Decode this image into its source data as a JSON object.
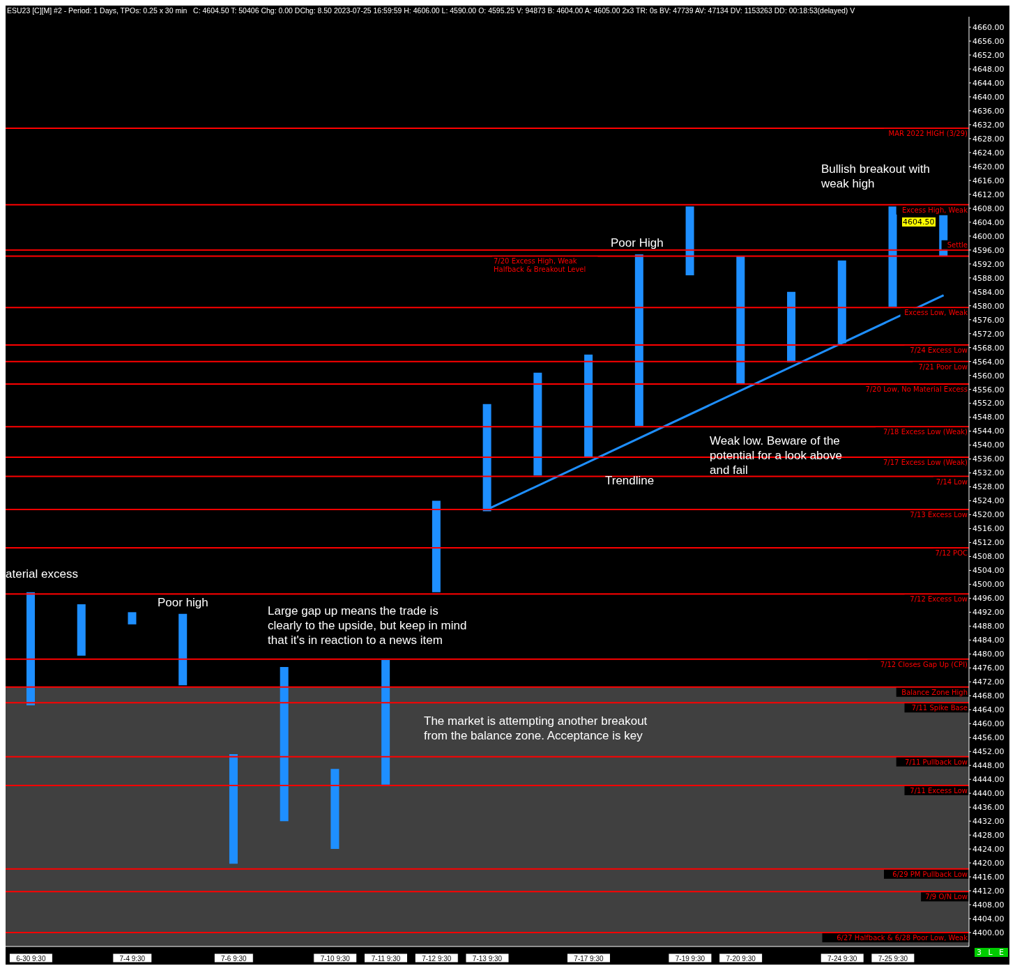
{
  "chart_data": {
    "type": "bar",
    "title": "ESU23 [C][M] #2 - Period: 1 Days, TPOs: 0.25 x 30 min",
    "subtitle": "C: 4604.50 T: 50406 Chg: 0.00 DChg: 8.50 2023-07-25 16:59:59 H: 4606.00 L: 4590.00 O: 4595.25 V: 94873 B: 4604.00 A: 4605.00 2x3 TR: 0s BV: 47739 AV: 47134 DV: 1153263 DD: 00:18:53(delayed) V",
    "categories": [
      "6-30 9:30",
      null,
      "7-4 9:30",
      null,
      "7-6 9:30",
      null,
      "7-10 9:30",
      "7-11 9:30",
      "7-12 9:30",
      "7-13 9:30",
      null,
      "7-17 9:30",
      null,
      "7-19 9:30",
      "7-20 9:30",
      null,
      "7-24 9:30",
      "7-25 9:30",
      null
    ],
    "series": [
      {
        "color": "#1e8fff",
        "base": [
          4465.25,
          4479.5,
          4488.5,
          4471,
          4419.75,
          4432,
          4424,
          4442.5,
          4497.75,
          4521,
          4531.25,
          4536.5,
          4545.5,
          4588.75,
          4557.5,
          4563.75,
          4569.25,
          4579.75,
          4594.25
        ],
        "values": [
          32.5,
          14.75,
          3.5,
          20.5,
          31.5,
          44.25,
          23,
          35.75,
          26.25,
          30.75,
          29.5,
          29.5,
          49.25,
          19.75,
          36.75,
          20.25,
          23.75,
          28.75,
          11.75
        ]
      },
      {
        "type": "line",
        "color": "#1e8fff",
        "values": [
          null,
          null,
          null,
          null,
          null,
          null,
          null,
          null,
          null,
          4521.5,
          null,
          null,
          null,
          null,
          null,
          null,
          null,
          null,
          4583
        ]
      }
    ],
    "ylim": [
      4396,
      4663
    ],
    "yticks": [
      {
        "value": 4400,
        "label": "4400.00"
      },
      {
        "value": 4404,
        "label": "4404.00"
      },
      {
        "value": 4408,
        "label": "4408.00"
      },
      {
        "value": 4412,
        "label": "4412.00"
      },
      {
        "value": 4416,
        "label": "4416.00"
      },
      {
        "value": 4420,
        "label": "4420.00"
      },
      {
        "value": 4424,
        "label": "4424.00"
      },
      {
        "value": 4428,
        "label": "4428.00"
      },
      {
        "value": 4432,
        "label": "4432.00"
      },
      {
        "value": 4436,
        "label": "4436.00"
      },
      {
        "value": 4440,
        "label": "4440.00"
      },
      {
        "value": 4444,
        "label": "4444.00"
      },
      {
        "value": 4448,
        "label": "4448.00"
      },
      {
        "value": 4452,
        "label": "4452.00"
      },
      {
        "value": 4456,
        "label": "4456.00"
      },
      {
        "value": 4460,
        "label": "4460.00"
      },
      {
        "value": 4464,
        "label": "4464.00"
      },
      {
        "value": 4468,
        "label": "4468.00"
      },
      {
        "value": 4472,
        "label": "4472.00"
      },
      {
        "value": 4476,
        "label": "4476.00"
      },
      {
        "value": 4480,
        "label": "4480.00"
      },
      {
        "value": 4484,
        "label": "4484.00"
      },
      {
        "value": 4488,
        "label": "4488.00"
      },
      {
        "value": 4492,
        "label": "4492.00"
      },
      {
        "value": 4496,
        "label": "4496.00"
      },
      {
        "value": 4500,
        "label": "4500.00"
      },
      {
        "value": 4504,
        "label": "4504.00"
      },
      {
        "value": 4508,
        "label": "4508.00"
      },
      {
        "value": 4512,
        "label": "4512.00"
      },
      {
        "value": 4516,
        "label": "4516.00"
      },
      {
        "value": 4520,
        "label": "4520.00"
      },
      {
        "value": 4524,
        "label": "4524.00"
      },
      {
        "value": 4528,
        "label": "4528.00"
      },
      {
        "value": 4532,
        "label": "4532.00"
      },
      {
        "value": 4536,
        "label": "4536.00"
      },
      {
        "value": 4540,
        "label": "4540.00"
      },
      {
        "value": 4544,
        "label": "4544.00"
      },
      {
        "value": 4548,
        "label": "4548.00"
      },
      {
        "value": 4552,
        "label": "4552.00"
      },
      {
        "value": 4556,
        "label": "4556.00"
      },
      {
        "value": 4560,
        "label": "4560.00"
      },
      {
        "value": 4564,
        "label": "4564.00"
      },
      {
        "value": 4568,
        "label": "4568.00"
      },
      {
        "value": 4572,
        "label": "4572.00"
      },
      {
        "value": 4576,
        "label": "4576.00"
      },
      {
        "value": 4580,
        "label": "4580.00"
      },
      {
        "value": 4584,
        "label": "4584.00"
      },
      {
        "value": 4588,
        "label": "4588.00"
      },
      {
        "value": 4592,
        "label": "4592.00"
      },
      {
        "value": 4596,
        "label": "4596.00"
      },
      {
        "value": 4600,
        "label": "4600.00"
      },
      {
        "value": 4604,
        "label": "4604.00"
      },
      {
        "value": 4608,
        "label": "4608.00"
      },
      {
        "value": 4612,
        "label": "4612.00"
      },
      {
        "value": 4616,
        "label": "4616.00"
      },
      {
        "value": 4620,
        "label": "4620.00"
      },
      {
        "value": 4624,
        "label": "4624.00"
      },
      {
        "value": 4628,
        "label": "4628.00"
      },
      {
        "value": 4632,
        "label": "4632.00"
      },
      {
        "value": 4636,
        "label": "4636.00"
      },
      {
        "value": 4640,
        "label": "4640.00"
      },
      {
        "value": 4644,
        "label": "4644.00"
      },
      {
        "value": 4648,
        "label": "4648.00"
      },
      {
        "value": 4652,
        "label": "4652.00"
      },
      {
        "value": 4656,
        "label": "4656.00"
      },
      {
        "value": 4660,
        "label": "4660.00"
      }
    ],
    "ref_lines": [
      {
        "axis": "y",
        "value": 4631,
        "label": "MAR 2022 HIGH (3/29)",
        "color": "#ff0000"
      },
      {
        "axis": "y",
        "value": 4609,
        "label": "Excess High, Weak",
        "color": "#ff0000"
      },
      {
        "axis": "y",
        "value": 4596,
        "label": "Settle",
        "color": "#ff0000"
      },
      {
        "axis": "y",
        "value": 4594.25,
        "label": "7/20 Excess High, Weak\nHalfback & Breakout Level",
        "color": "#ff0000"
      },
      {
        "axis": "y",
        "value": 4579.5,
        "label": "Excess Low, Weak",
        "color": "#ff0000"
      },
      {
        "axis": "y",
        "value": 4568.75,
        "label": "7/24 Excess Low",
        "color": "#ff0000"
      },
      {
        "axis": "y",
        "value": 4564,
        "label": "7/21 Poor Low",
        "color": "#ff0000"
      },
      {
        "axis": "y",
        "value": 4557.5,
        "label": "7/20 Low, No Material Excess",
        "color": "#ff0000"
      },
      {
        "axis": "y",
        "value": 4545.25,
        "label": "7/18 Excess Low (Weak)",
        "color": "#ff0000"
      },
      {
        "axis": "y",
        "value": 4536.5,
        "label": "7/17 Excess Low (Weak)",
        "color": "#ff0000"
      },
      {
        "axis": "y",
        "value": 4531,
        "label": "7/14 Low",
        "color": "#ff0000"
      },
      {
        "axis": "y",
        "value": 4521.5,
        "label": "7/13 Excess Low",
        "color": "#ff0000"
      },
      {
        "axis": "y",
        "value": 4510.5,
        "label": "7/12 POC",
        "color": "#ff0000"
      },
      {
        "axis": "y",
        "value": 4497.25,
        "label": "7/12 Excess Low",
        "color": "#ff0000"
      },
      {
        "axis": "y",
        "value": 4478.5,
        "label": "7/12 Closes Gap Up (CPI)",
        "color": "#ff0000"
      },
      {
        "axis": "y",
        "value": 4470.5,
        "label": "Balance Zone High",
        "color": "#ff0000"
      },
      {
        "axis": "y",
        "value": 4466,
        "label": "7/11 Spike Base",
        "color": "#ff0000"
      },
      {
        "axis": "y",
        "value": 4450.5,
        "label": "7/11 Pullback Low",
        "color": "#ff0000"
      },
      {
        "axis": "y",
        "value": 4442.25,
        "label": "7/11 Excess Low",
        "color": "#ff0000"
      },
      {
        "axis": "y",
        "value": 4418.25,
        "label": "6/29 PM Pullback Low",
        "color": "#ff0000"
      },
      {
        "axis": "y",
        "value": 4411.75,
        "label": "7/9 O/N Low",
        "color": "#ff0000"
      },
      {
        "axis": "y",
        "value": 4400,
        "label": "6/27 Halfback & 6/28 Poor Low, Weak",
        "color": "#ff0000"
      }
    ],
    "bands": [
      {
        "axis": "y",
        "from": 4396,
        "to": 4470.5,
        "color": "#404040"
      }
    ],
    "annotations": [
      "aterial excess",
      "Poor high",
      "Large gap up means the trade is clearly to the upside, but keep in mind that it's in reaction to a news item",
      "The market is attempting another breakout from the balance zone. Acceptance is key",
      "Poor High",
      "Bullish breakout with weak high",
      "Weak low. Beware of the potential for a look above and fail",
      "Trendline",
      "4604.50",
      "3 L E"
    ],
    "grid": false,
    "legend": false
  }
}
